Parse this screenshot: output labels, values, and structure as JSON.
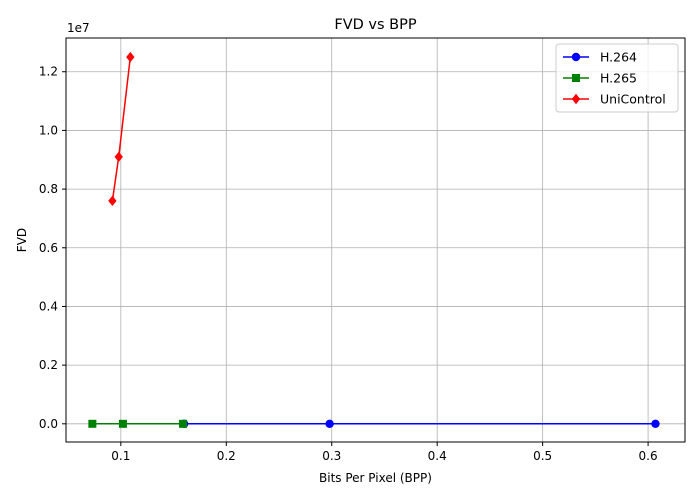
{
  "chart_data": {
    "type": "line",
    "title": "FVD vs BPP",
    "xlabel": "Bits Per Pixel (BPP)",
    "ylabel": "FVD",
    "y_offset_label": "1e7",
    "xlim": [
      0.048,
      0.635
    ],
    "ylim": [
      -620000,
      13150000
    ],
    "grid": true,
    "legend_position": "top-right",
    "x_ticks": [
      {
        "value": 0.1,
        "label": "0.1"
      },
      {
        "value": 0.2,
        "label": "0.2"
      },
      {
        "value": 0.3,
        "label": "0.3"
      },
      {
        "value": 0.4,
        "label": "0.4"
      },
      {
        "value": 0.5,
        "label": "0.5"
      },
      {
        "value": 0.6,
        "label": "0.6"
      }
    ],
    "y_ticks": [
      {
        "value": 0,
        "label": "0.0"
      },
      {
        "value": 2000000,
        "label": "0.2"
      },
      {
        "value": 4000000,
        "label": "0.4"
      },
      {
        "value": 6000000,
        "label": "0.6"
      },
      {
        "value": 8000000,
        "label": "0.8"
      },
      {
        "value": 10000000,
        "label": "1.0"
      },
      {
        "value": 12000000,
        "label": "1.2"
      }
    ],
    "series": [
      {
        "name": "H.264",
        "color": "#0000ff",
        "marker": "circle",
        "x": [
          0.16,
          0.298,
          0.607
        ],
        "y": [
          0,
          0,
          0
        ]
      },
      {
        "name": "H.265",
        "color": "#008000",
        "marker": "square",
        "x": [
          0.073,
          0.102,
          0.159
        ],
        "y": [
          0,
          0,
          0
        ]
      },
      {
        "name": "UniControl",
        "color": "#ff0000",
        "marker": "diamond",
        "x": [
          0.092,
          0.098,
          0.109
        ],
        "y": [
          7600000,
          9100000,
          12500000
        ]
      }
    ]
  }
}
